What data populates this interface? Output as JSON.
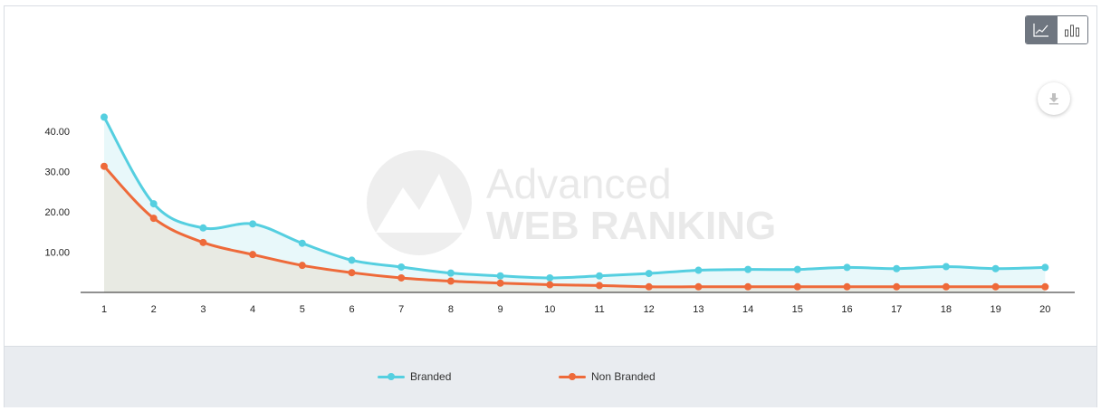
{
  "chart_data": {
    "type": "line",
    "title": "",
    "xlabel": "",
    "ylabel": "",
    "x": [
      1,
      2,
      3,
      4,
      5,
      6,
      7,
      8,
      9,
      10,
      11,
      12,
      13,
      14,
      15,
      16,
      17,
      18,
      19,
      20
    ],
    "ylim": [
      0,
      48
    ],
    "yticks": [
      "10.00",
      "20.00",
      "30.00",
      "40.00"
    ],
    "ytick_values": [
      10,
      20,
      30,
      40
    ],
    "grid": false,
    "legend_position": "bottom",
    "series": [
      {
        "name": "Branded",
        "color": "#55cfe0",
        "fill": "#e8f8fa",
        "values": [
          43.5,
          22.0,
          16.0,
          17.0,
          12.2,
          8.0,
          6.3,
          4.8,
          4.1,
          3.6,
          4.1,
          4.7,
          5.5,
          5.7,
          5.7,
          6.2,
          5.9,
          6.4,
          5.9,
          6.2
        ]
      },
      {
        "name": "Non Branded",
        "color": "#ee6a3a",
        "fill": "#e8eae3",
        "values": [
          31.3,
          18.4,
          12.4,
          9.4,
          6.7,
          4.9,
          3.6,
          2.8,
          2.3,
          1.9,
          1.7,
          1.4,
          1.4,
          1.4,
          1.4,
          1.4,
          1.4,
          1.4,
          1.4,
          1.4
        ]
      }
    ]
  },
  "watermark": {
    "line1": "Advanced",
    "line2": "WEB RANKING"
  },
  "toolbar": {
    "line_icon": "line-chart-icon",
    "bar_icon": "bar-chart-icon",
    "download_icon": "download-icon"
  }
}
